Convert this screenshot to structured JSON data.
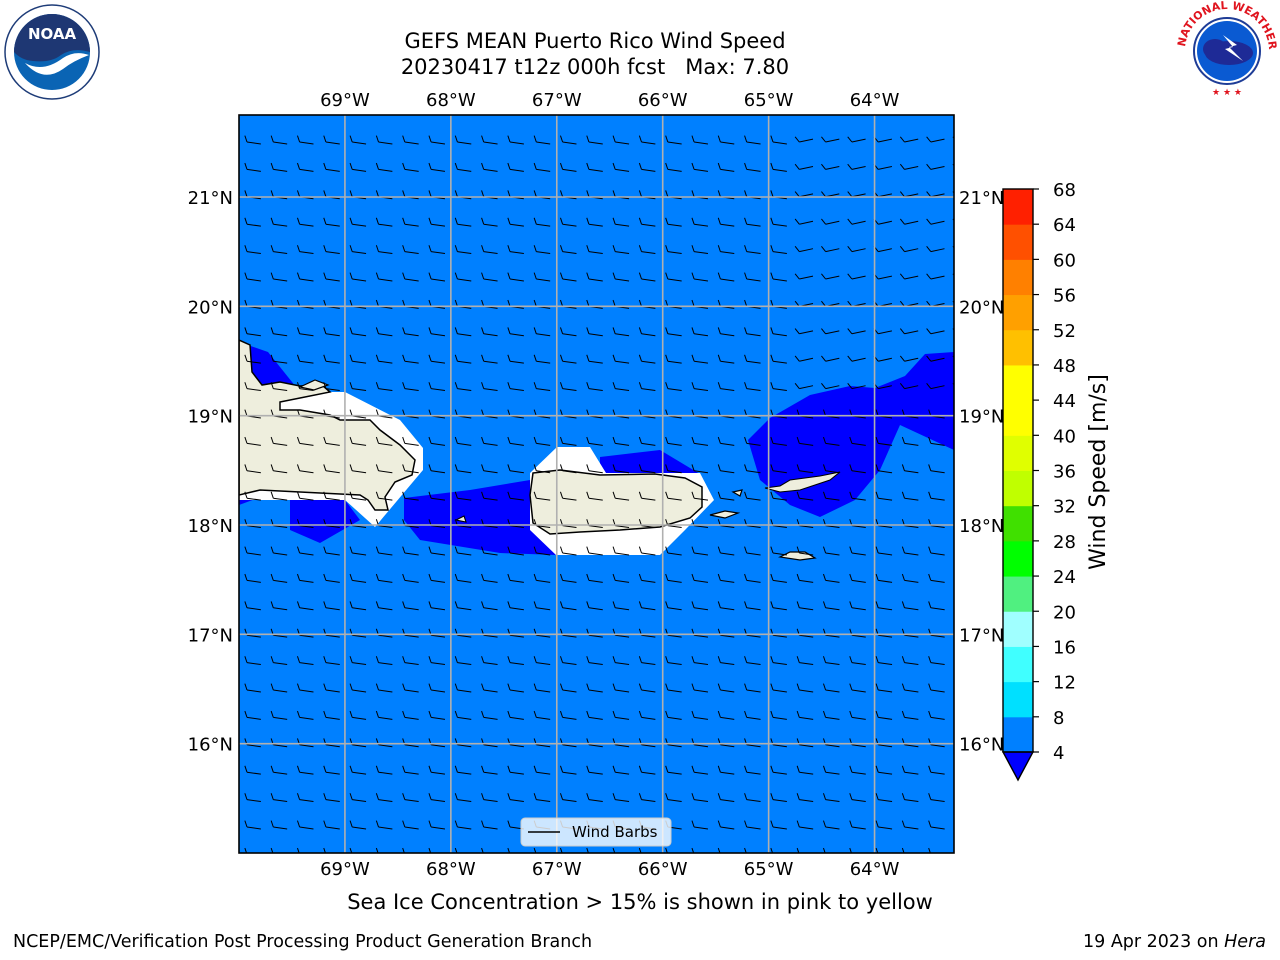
{
  "header": {
    "title_line1": "GEFS MEAN Puerto Rico Wind Speed",
    "title_line2": "20230417 t12z 000h fcst   Max: 7.80"
  },
  "logos": {
    "left": {
      "icon": "noaa-logo-icon",
      "text": "NOAA"
    },
    "right": {
      "icon": "nws-logo-icon",
      "text": "NATIONAL WEATHER SERVICE"
    }
  },
  "map": {
    "lon_ticks": [
      "69°W",
      "68°W",
      "67°W",
      "66°W",
      "65°W",
      "64°W"
    ],
    "lat_ticks": [
      "21°N",
      "20°N",
      "19°N",
      "18°N",
      "17°N",
      "16°N"
    ],
    "lon_range": [
      -70.0,
      -63.25
    ],
    "lat_range": [
      15.0,
      21.75
    ],
    "background_color": "#0080ff",
    "stronger_wind_color": "#0000ff",
    "land_color": "#eeeedd",
    "legend_label": "Wind Barbs"
  },
  "colorbar": {
    "label": "Wind Speed [m/s]",
    "ticks": [
      "4",
      "8",
      "12",
      "16",
      "20",
      "24",
      "28",
      "32",
      "36",
      "40",
      "44",
      "48",
      "52",
      "56",
      "60",
      "64",
      "68"
    ],
    "colors": [
      "#0080ff",
      "#00e0ff",
      "#40ffff",
      "#a0ffff",
      "#50f080",
      "#00ff00",
      "#40e000",
      "#c0ff00",
      "#e0ff00",
      "#ffff00",
      "#ffff00",
      "#ffc000",
      "#ffa000",
      "#ff8000",
      "#ff5000",
      "#ff2000"
    ],
    "extend": "min"
  },
  "footer": {
    "sea_ice_note": "Sea Ice Concentration > 15% is shown in pink to yellow",
    "credit_left": "NCEP/EMC/Verification Post Processing Product Generation Branch",
    "date": "19 Apr 2023 on ",
    "host": "Hera"
  }
}
